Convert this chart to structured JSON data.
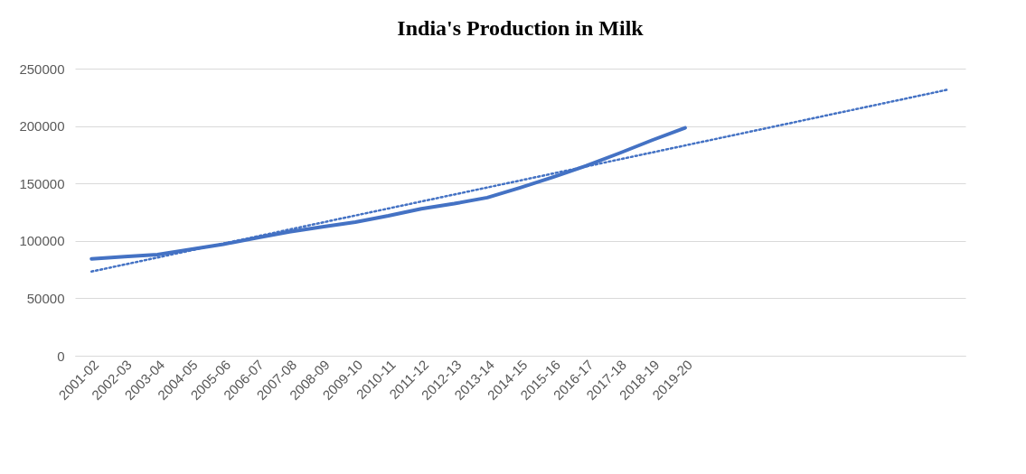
{
  "chart_data": {
    "type": "line",
    "title": "India's Production in Milk",
    "categories": [
      "2001-02",
      "2002-03",
      "2003-04",
      "2004-05",
      "2005-06",
      "2006-07",
      "2007-08",
      "2008-09",
      "2009-10",
      "2010-11",
      "2011-12",
      "2012-13",
      "2013-14",
      "2014-15",
      "2015-16",
      "2016-17",
      "2017-18",
      "2018-19",
      "2019-20",
      null,
      null,
      null,
      null,
      null,
      null,
      null,
      null
    ],
    "series": [
      {
        "color": "#4472c4",
        "line_style": "solid",
        "values": [
          84400,
          86200,
          88100,
          92500,
          97100,
          102600,
          107900,
          112200,
          116400,
          121800,
          127900,
          132400,
          137700,
          146300,
          155500,
          165400,
          176300,
          187700,
          198400,
          null,
          null,
          null,
          null,
          null,
          null,
          null,
          null
        ]
      },
      {
        "color": "#4472c4",
        "line_style": "dotted",
        "values": [
          73300,
          79400,
          85500,
          91600,
          97700,
          103800,
          109900,
          116000,
          122100,
          128200,
          134300,
          140400,
          146500,
          152600,
          158700,
          164800,
          170900,
          177000,
          183100,
          189200,
          195300,
          201400,
          207500,
          213600,
          219700,
          225800,
          231900
        ]
      }
    ],
    "ylim": [
      0,
      250000
    ],
    "yticks": [
      0,
      50000,
      100000,
      150000,
      200000,
      250000
    ],
    "grid": "y"
  }
}
